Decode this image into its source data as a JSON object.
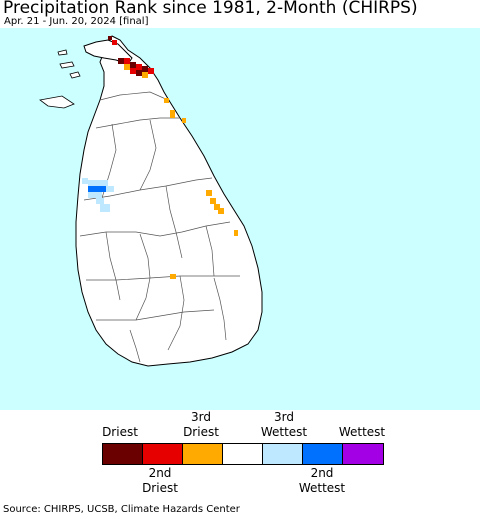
{
  "title": "Precipitation Rank since 1981, 2-Month (CHIRPS)",
  "subtitle": "Apr. 21 - Jun. 20, 2024 [final]",
  "legend": {
    "top_labels": [
      {
        "line1": "",
        "line2": "Driest"
      },
      {
        "line1": "3rd",
        "line2": "Driest"
      },
      {
        "line1": "3rd",
        "line2": "Wettest"
      },
      {
        "line1": "",
        "line2": "Wettest"
      }
    ],
    "bottom_labels": [
      {
        "line1": "2nd",
        "line2": "Driest"
      },
      {
        "line1": "2nd",
        "line2": "Wettest"
      }
    ],
    "colors": [
      "#6b0000",
      "#e60000",
      "#ffaa00",
      "#ffffff",
      "#bee8ff",
      "#0070ff",
      "#a300e6"
    ]
  },
  "source": "Source: CHIRPS, UCSB, Climate Hazards Center"
}
